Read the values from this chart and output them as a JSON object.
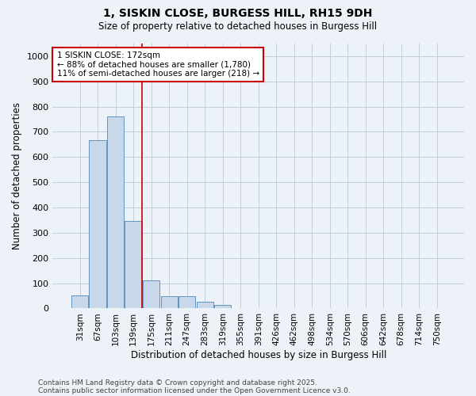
{
  "title_line1": "1, SISKIN CLOSE, BURGESS HILL, RH15 9DH",
  "title_line2": "Size of property relative to detached houses in Burgess Hill",
  "xlabel": "Distribution of detached houses by size in Burgess Hill",
  "ylabel": "Number of detached properties",
  "categories": [
    "31sqm",
    "67sqm",
    "103sqm",
    "139sqm",
    "175sqm",
    "211sqm",
    "247sqm",
    "283sqm",
    "319sqm",
    "355sqm",
    "391sqm",
    "426sqm",
    "462sqm",
    "498sqm",
    "534sqm",
    "570sqm",
    "606sqm",
    "642sqm",
    "678sqm",
    "714sqm",
    "750sqm"
  ],
  "values": [
    52,
    668,
    760,
    348,
    110,
    50,
    50,
    27,
    15,
    0,
    0,
    3,
    0,
    0,
    0,
    0,
    0,
    0,
    0,
    0,
    0
  ],
  "bar_color": "#c8d8ea",
  "bar_edge_color": "#5f95c0",
  "vline_x": 3.5,
  "vline_color": "#cc0000",
  "annotation_text_line1": "1 SISKIN CLOSE: 172sqm",
  "annotation_text_line2": "← 88% of detached houses are smaller (1,780)",
  "annotation_text_line3": "11% of semi-detached houses are larger (218) →",
  "annotation_box_color": "#cc0000",
  "annotation_bg_color": "#ffffff",
  "ylim": [
    0,
    1050
  ],
  "yticks": [
    0,
    100,
    200,
    300,
    400,
    500,
    600,
    700,
    800,
    900,
    1000
  ],
  "grid_color": "#c0cfdf",
  "footer_line1": "Contains HM Land Registry data © Crown copyright and database right 2025.",
  "footer_line2": "Contains public sector information licensed under the Open Government Licence v3.0.",
  "bg_color": "#edf2f8"
}
